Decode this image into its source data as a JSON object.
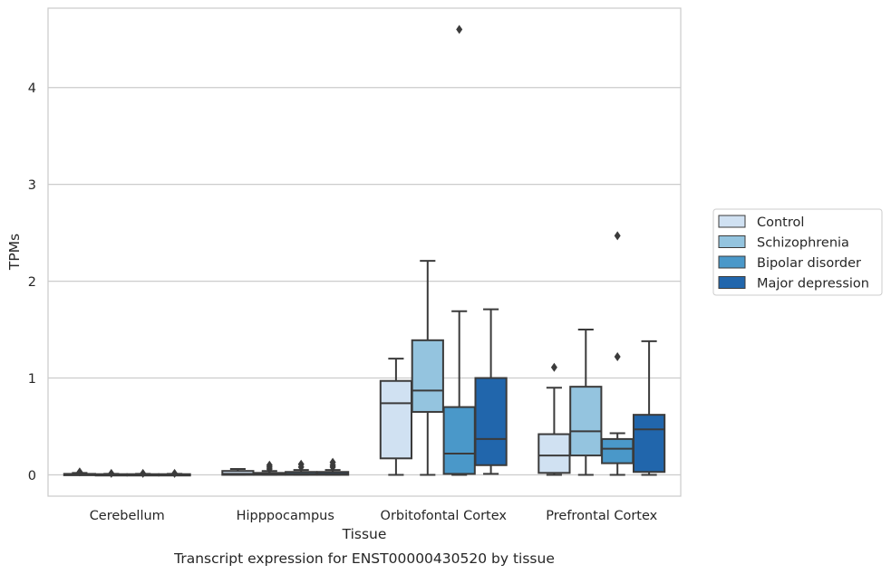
{
  "chart_data": {
    "type": "box",
    "caption": "Transcript expression for ENST00000430520 by tissue",
    "xlabel": "Tissue",
    "ylabel": "TPMs",
    "ylim": [
      -0.22,
      4.82
    ],
    "yticks": [
      0,
      1,
      2,
      3,
      4
    ],
    "grid": true,
    "legend_position": "right",
    "categories": [
      "Cerebellum",
      "Hipppocampus",
      "Orbitofontal Cortex",
      "Prefrontal Cortex"
    ],
    "series": [
      {
        "name": "Control",
        "color": "#d0e1f2",
        "boxes": [
          {
            "whislo": 0,
            "q1": 0,
            "med": 0.005,
            "q3": 0.01,
            "whishi": 0.02,
            "fliers": [
              0.03
            ]
          },
          {
            "whislo": 0,
            "q1": 0,
            "med": 0.01,
            "q3": 0.04,
            "whishi": 0.06,
            "fliers": []
          },
          {
            "whislo": 0,
            "q1": 0.17,
            "med": 0.74,
            "q3": 0.97,
            "whishi": 1.2,
            "fliers": []
          },
          {
            "whislo": 0,
            "q1": 0.02,
            "med": 0.2,
            "q3": 0.42,
            "whishi": 0.9,
            "fliers": [
              1.11
            ]
          }
        ]
      },
      {
        "name": "Schizophrenia",
        "color": "#94c4df",
        "boxes": [
          {
            "whislo": 0,
            "q1": 0,
            "med": 0.003,
            "q3": 0.007,
            "whishi": 0.01,
            "fliers": [
              0.015
            ]
          },
          {
            "whislo": 0,
            "q1": 0,
            "med": 0.005,
            "q3": 0.02,
            "whishi": 0.04,
            "fliers": [
              0.06,
              0.08,
              0.1
            ]
          },
          {
            "whislo": 0,
            "q1": 0.65,
            "med": 0.87,
            "q3": 1.39,
            "whishi": 2.21,
            "fliers": []
          },
          {
            "whislo": 0,
            "q1": 0.2,
            "med": 0.45,
            "q3": 0.91,
            "whishi": 1.5,
            "fliers": []
          }
        ]
      },
      {
        "name": "Bipolar disorder",
        "color": "#4a98c9",
        "boxes": [
          {
            "whislo": 0,
            "q1": 0,
            "med": 0.003,
            "q3": 0.007,
            "whishi": 0.01,
            "fliers": [
              0.015
            ]
          },
          {
            "whislo": 0,
            "q1": 0,
            "med": 0.01,
            "q3": 0.03,
            "whishi": 0.05,
            "fliers": [
              0.08,
              0.11
            ]
          },
          {
            "whislo": 0,
            "q1": 0.01,
            "med": 0.22,
            "q3": 0.7,
            "whishi": 1.69,
            "fliers": [
              4.6
            ]
          },
          {
            "whislo": 0,
            "q1": 0.12,
            "med": 0.27,
            "q3": 0.37,
            "whishi": 0.43,
            "fliers": [
              1.22,
              2.47
            ]
          }
        ]
      },
      {
        "name": "Major depression",
        "color": "#2166ac",
        "boxes": [
          {
            "whislo": 0,
            "q1": 0,
            "med": 0.003,
            "q3": 0.007,
            "whishi": 0.01,
            "fliers": [
              0.015
            ]
          },
          {
            "whislo": 0,
            "q1": 0,
            "med": 0.01,
            "q3": 0.03,
            "whishi": 0.05,
            "fliers": [
              0.08,
              0.1,
              0.13
            ]
          },
          {
            "whislo": 0.01,
            "q1": 0.1,
            "med": 0.37,
            "q3": 1.0,
            "whishi": 1.71,
            "fliers": []
          },
          {
            "whislo": 0,
            "q1": 0.03,
            "med": 0.47,
            "q3": 0.62,
            "whishi": 1.38,
            "fliers": []
          }
        ]
      }
    ]
  }
}
